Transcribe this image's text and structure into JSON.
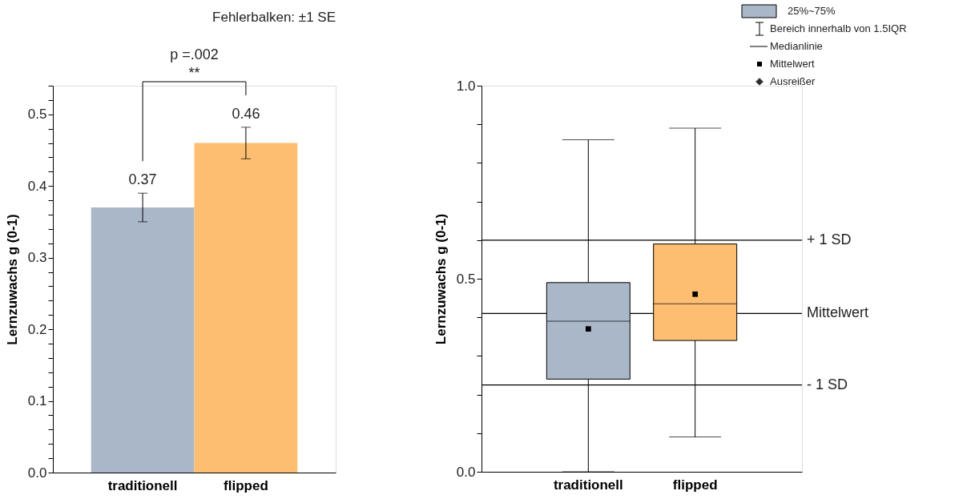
{
  "chart_data": [
    {
      "type": "bar",
      "categories": [
        "traditionell",
        "flipped"
      ],
      "values": [
        0.37,
        0.46
      ],
      "colors": [
        "#aab7c9",
        "#fdbe72"
      ],
      "errors": [
        0.02,
        0.022
      ],
      "data_labels": true,
      "ylabel": "Lernzuwachs g (0-1)",
      "ylim": [
        0,
        0.54
      ],
      "yticks": [
        {
          "value": 0,
          "label": "0.0"
        },
        {
          "value": 0.02,
          "label": null
        },
        {
          "value": 0.04,
          "label": null
        },
        {
          "value": 0.06,
          "label": null
        },
        {
          "value": 0.08,
          "label": null
        },
        0.1,
        {
          "value": 0.12,
          "label": null
        },
        {
          "value": 0.14,
          "label": null
        },
        {
          "value": 0.16,
          "label": null
        },
        {
          "value": 0.18,
          "label": null
        },
        0.2,
        {
          "value": 0.22,
          "label": null
        },
        {
          "value": 0.24,
          "label": null
        },
        {
          "value": 0.26,
          "label": null
        },
        {
          "value": 0.28,
          "label": null
        },
        0.3,
        {
          "value": 0.32,
          "label": null
        },
        {
          "value": 0.34,
          "label": null
        },
        {
          "value": 0.36,
          "label": null
        },
        {
          "value": 0.38,
          "label": null
        },
        0.4,
        {
          "value": 0.42,
          "label": null
        },
        {
          "value": 0.44,
          "label": null
        },
        {
          "value": 0.46,
          "label": null
        },
        {
          "value": 0.48,
          "label": null
        },
        0.5,
        {
          "value": 0.52,
          "label": null
        },
        {
          "value": 0.54,
          "label": null
        }
      ],
      "annotations": [
        "Fehlerbalken: ±1 SE",
        "p =.002",
        "**"
      ]
    },
    {
      "type": "box",
      "categories": [
        "traditionell",
        "flipped"
      ],
      "colors": [
        "#aab7c9",
        "#fdbe72"
      ],
      "ylabel": "Lernzuwachs g (0-1)",
      "ylim": [
        0,
        1.0
      ],
      "yticks": [
        {
          "value": 0,
          "label": "0.0"
        },
        {
          "value": 0.1,
          "label": null
        },
        {
          "value": 0.2,
          "label": null
        },
        {
          "value": 0.3,
          "label": null
        },
        {
          "value": 0.4,
          "label": null
        },
        0.5,
        {
          "value": 0.6,
          "label": null
        },
        {
          "value": 0.7,
          "label": null
        },
        {
          "value": 0.8,
          "label": null
        },
        {
          "value": 0.9,
          "label": null
        },
        {
          "value": 1,
          "label": "1.0"
        }
      ],
      "boxes": [
        {
          "low": 0,
          "q1": 0.24,
          "median": 0.39,
          "q3": 0.49,
          "high": 0.86,
          "mean": 0.37
        },
        {
          "low": 0.09,
          "q1": 0.34,
          "median": 0.435,
          "q3": 0.59,
          "high": 0.89,
          "mean": 0.46
        }
      ],
      "marker": "square",
      "ref_lines": [
        {
          "axis": "y",
          "value": 0.6,
          "label": "+ 1 SD"
        },
        {
          "axis": "y",
          "value": 0.41,
          "label": "Mittelwert"
        },
        {
          "axis": "y",
          "value": 0.225,
          "label": "- 1 SD"
        }
      ],
      "annotations": [
        "25%~75%",
        "Bereich innerhalb von 1.5IQR",
        "Medianlinie",
        "Mittelwert",
        "Ausreißer"
      ]
    }
  ]
}
